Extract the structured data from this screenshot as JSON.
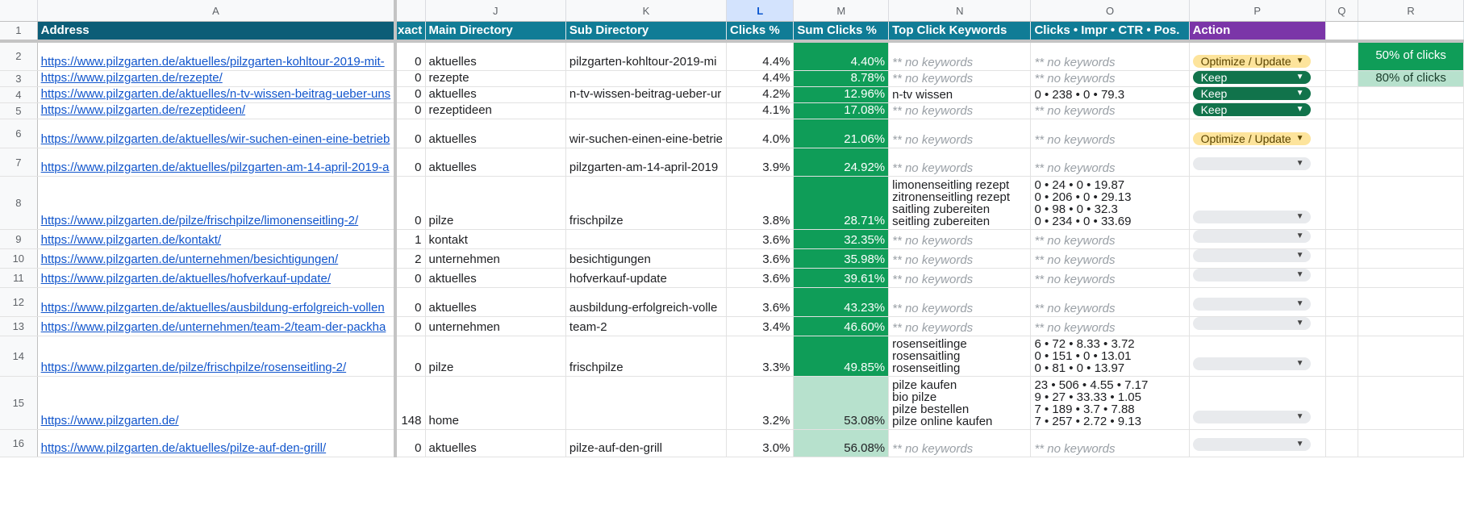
{
  "columns": [
    "A",
    "J",
    "K",
    "L",
    "M",
    "N",
    "O",
    "P",
    "Q",
    "R"
  ],
  "selected_column": "L",
  "headers": {
    "address": "Address",
    "exact": "xact",
    "main_directory": "Main Directory",
    "sub_directory": "Sub Directory",
    "clicks_pct": "Clicks %",
    "sum_clicks_pct": "Sum Clicks %",
    "top_click_keywords": "Top Click Keywords",
    "clicks_impr_ctr_pos": "Clicks • Impr • CTR • Pos.",
    "action": "Action"
  },
  "legend": {
    "r2": "50% of clicks",
    "r3": "80% of clicks"
  },
  "colors": {
    "header_dark": "#0c5d77",
    "header_teal": "#107c96",
    "header_action": "#7b35a8",
    "sum_dark": "#0f9d58",
    "sum_light": "#b7e1cd",
    "keep": "#11734b",
    "optimize": "#fde49c"
  },
  "rows": [
    {
      "n": "2",
      "address": "https://www.pilzgarten.de/aktuelles/pilzgarten-kohltour-2019-mit-",
      "exact": "0",
      "main": "aktuelles",
      "sub": "pilzgarten-kohltour-2019-mi",
      "clicks": "4.4%",
      "sum": "4.40%",
      "kw": [
        "** no keywords"
      ],
      "stats": [
        "** no keywords"
      ],
      "action": "Optimize / Update"
    },
    {
      "n": "3",
      "address": "https://www.pilzgarten.de/rezepte/",
      "exact": "0",
      "main": "rezepte",
      "sub": "",
      "clicks": "4.4%",
      "sum": "8.78%",
      "kw": [
        "** no keywords"
      ],
      "stats": [
        "** no keywords"
      ],
      "action": "Keep"
    },
    {
      "n": "4",
      "address": "https://www.pilzgarten.de/aktuelles/n-tv-wissen-beitrag-ueber-uns",
      "exact": "0",
      "main": "aktuelles",
      "sub": "n-tv-wissen-beitrag-ueber-ur",
      "clicks": "4.2%",
      "sum": "12.96%",
      "kw": [
        "n-tv wissen"
      ],
      "stats": [
        "0 • 238 • 0 • 79.3"
      ],
      "action": "Keep"
    },
    {
      "n": "5",
      "address": "https://www.pilzgarten.de/rezeptideen/",
      "exact": "0",
      "main": "rezeptideen",
      "sub": "",
      "clicks": "4.1%",
      "sum": "17.08%",
      "kw": [
        "** no keywords"
      ],
      "stats": [
        "** no keywords"
      ],
      "action": "Keep"
    },
    {
      "n": "6",
      "address": "https://www.pilzgarten.de/aktuelles/wir-suchen-einen-eine-betrieb",
      "exact": "0",
      "main": "aktuelles",
      "sub": "wir-suchen-einen-eine-betrie",
      "clicks": "4.0%",
      "sum": "21.06%",
      "kw": [
        "** no keywords"
      ],
      "stats": [
        "** no keywords"
      ],
      "action": "Optimize / Update"
    },
    {
      "n": "7",
      "address": "https://www.pilzgarten.de/aktuelles/pilzgarten-am-14-april-2019-a",
      "exact": "0",
      "main": "aktuelles",
      "sub": "pilzgarten-am-14-april-2019",
      "clicks": "3.9%",
      "sum": "24.92%",
      "kw": [
        "** no keywords"
      ],
      "stats": [
        "** no keywords"
      ],
      "action": ""
    },
    {
      "n": "8",
      "address": "https://www.pilzgarten.de/pilze/frischpilze/limonenseitling-2/",
      "exact": "0",
      "main": "pilze",
      "sub": "frischpilze",
      "clicks": "3.8%",
      "sum": "28.71%",
      "kw": [
        "limonenseitling rezept",
        "zitronenseitling rezept",
        "saitling zubereiten",
        "seitling zubereiten"
      ],
      "stats": [
        "0 • 24 • 0 • 19.87",
        "0 • 206 • 0 • 29.13",
        "0 • 98 • 0 • 32.3",
        "0 • 234 • 0 • 33.69"
      ],
      "action": ""
    },
    {
      "n": "9",
      "address": "https://www.pilzgarten.de/kontakt/",
      "exact": "1",
      "main": "kontakt",
      "sub": "",
      "clicks": "3.6%",
      "sum": "32.35%",
      "kw": [
        "** no keywords"
      ],
      "stats": [
        "** no keywords"
      ],
      "action": ""
    },
    {
      "n": "10",
      "address": "https://www.pilzgarten.de/unternehmen/besichtigungen/",
      "exact": "2",
      "main": "unternehmen",
      "sub": "besichtigungen",
      "clicks": "3.6%",
      "sum": "35.98%",
      "kw": [
        "** no keywords"
      ],
      "stats": [
        "** no keywords"
      ],
      "action": ""
    },
    {
      "n": "11",
      "address": "https://www.pilzgarten.de/aktuelles/hofverkauf-update/",
      "exact": "0",
      "main": "aktuelles",
      "sub": "hofverkauf-update",
      "clicks": "3.6%",
      "sum": "39.61%",
      "kw": [
        "** no keywords"
      ],
      "stats": [
        "** no keywords"
      ],
      "action": ""
    },
    {
      "n": "12",
      "address": "https://www.pilzgarten.de/aktuelles/ausbildung-erfolgreich-vollen",
      "exact": "0",
      "main": "aktuelles",
      "sub": "ausbildung-erfolgreich-volle",
      "clicks": "3.6%",
      "sum": "43.23%",
      "kw": [
        "** no keywords"
      ],
      "stats": [
        "** no keywords"
      ],
      "action": ""
    },
    {
      "n": "13",
      "address": "https://www.pilzgarten.de/unternehmen/team-2/team-der-packha",
      "exact": "0",
      "main": "unternehmen",
      "sub": "team-2",
      "clicks": "3.4%",
      "sum": "46.60%",
      "kw": [
        "** no keywords"
      ],
      "stats": [
        "** no keywords"
      ],
      "action": ""
    },
    {
      "n": "14",
      "address": "https://www.pilzgarten.de/pilze/frischpilze/rosenseitling-2/",
      "exact": "0",
      "main": "pilze",
      "sub": "frischpilze",
      "clicks": "3.3%",
      "sum": "49.85%",
      "kw": [
        "rosenseitlinge",
        "rosensaitling",
        "rosenseitling"
      ],
      "stats": [
        "6 • 72 • 8.33 • 3.72",
        "0 • 151 • 0 • 13.01",
        "0 • 81 • 0 • 13.97"
      ],
      "action": ""
    },
    {
      "n": "15",
      "address": "https://www.pilzgarten.de/",
      "exact": "148",
      "main": "home",
      "sub": "",
      "clicks": "3.2%",
      "sum": "53.08%",
      "kw": [
        "pilze kaufen",
        "bio pilze",
        "pilze bestellen",
        "pilze online kaufen"
      ],
      "stats": [
        "23 • 506 • 4.55 • 7.17",
        "9 • 27 • 33.33 • 1.05",
        "7 • 189 • 3.7 • 7.88",
        "7 • 257 • 2.72 • 9.13"
      ],
      "action": ""
    },
    {
      "n": "16",
      "address": "https://www.pilzgarten.de/aktuelles/pilze-auf-den-grill/",
      "exact": "0",
      "main": "aktuelles",
      "sub": "pilze-auf-den-grill",
      "clicks": "3.0%",
      "sum": "56.08%",
      "kw": [
        "** no keywords"
      ],
      "stats": [
        "** no keywords"
      ],
      "action": ""
    }
  ]
}
